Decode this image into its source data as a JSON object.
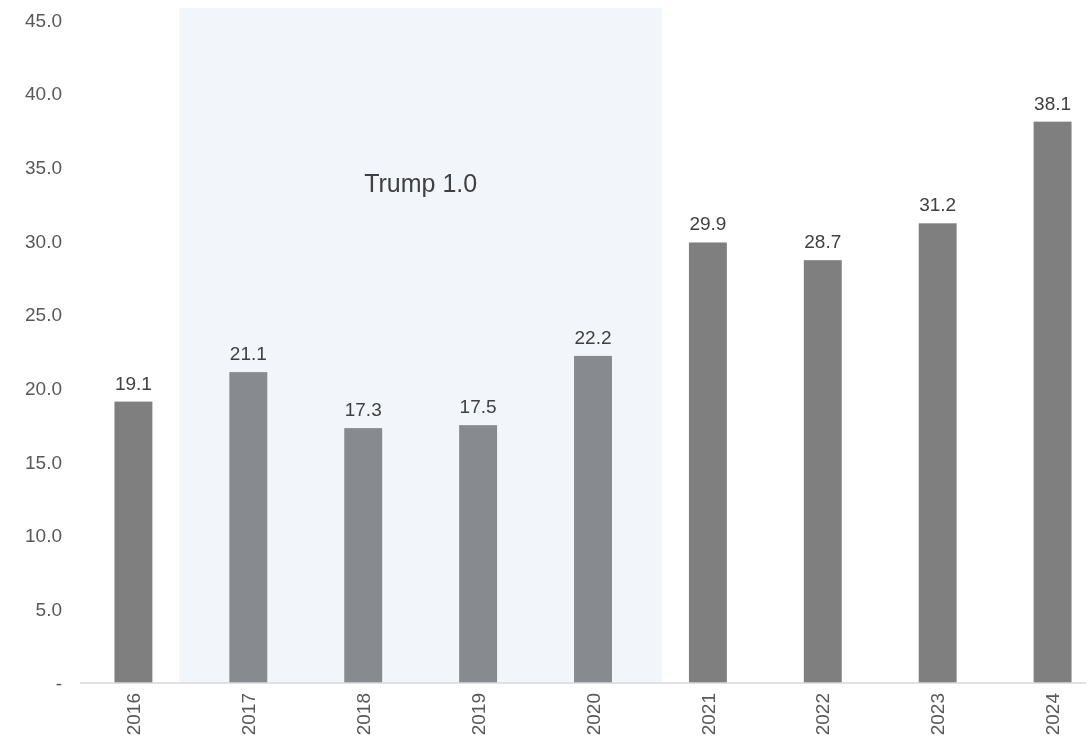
{
  "chart_data": {
    "type": "bar",
    "categories": [
      "2016",
      "2017",
      "2018",
      "2019",
      "2020",
      "2021",
      "2022",
      "2023",
      "2024"
    ],
    "values": [
      19.1,
      21.1,
      17.3,
      17.5,
      22.2,
      29.9,
      28.7,
      31.2,
      38.1
    ],
    "colors": [
      "#7f7f7f",
      "#878a8e",
      "#878a8e",
      "#878a8e",
      "#878a8e",
      "#7f7f7f",
      "#7f7f7f",
      "#7f7f7f",
      "#7f7f7f"
    ],
    "ylim": [
      0,
      45
    ],
    "yticks": [
      {
        "value": 0,
        "label": "-"
      },
      {
        "value": 5,
        "label": "5.0"
      },
      {
        "value": 10,
        "label": "10.0"
      },
      {
        "value": 15,
        "label": "15.0"
      },
      {
        "value": 20,
        "label": "20.0"
      },
      {
        "value": 25,
        "label": "25.0"
      },
      {
        "value": 30,
        "label": "30.0"
      },
      {
        "value": 35,
        "label": "35.0"
      },
      {
        "value": 40,
        "label": "40.0"
      },
      {
        "value": 45,
        "label": "45.0"
      }
    ],
    "bands": [
      {
        "axis": "x",
        "from": "2017",
        "to": "2020",
        "label": "Trump 1.0",
        "color": "#f2f5fa"
      }
    ],
    "data_labels": true,
    "grid": false
  }
}
